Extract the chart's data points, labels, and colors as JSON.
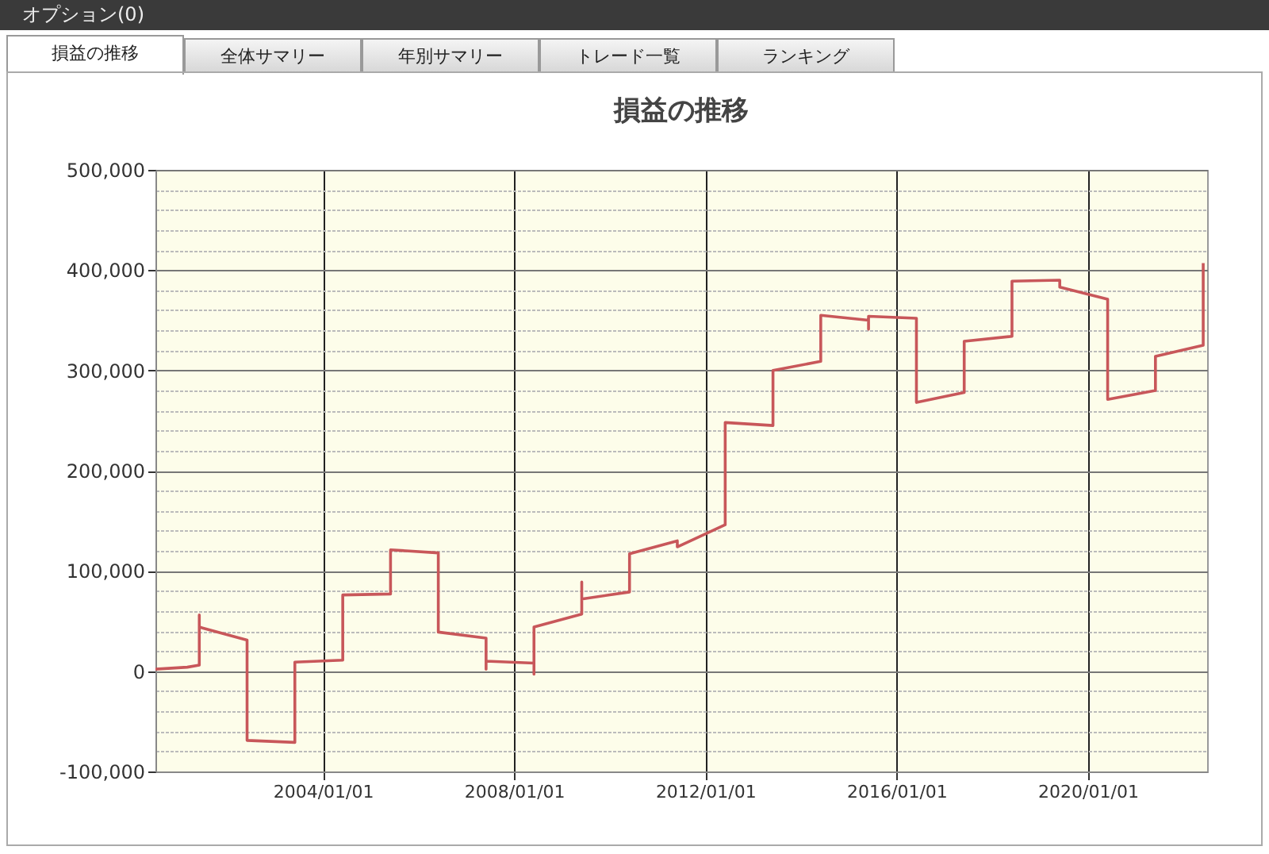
{
  "chart_data": {
    "type": "line",
    "title": "損益の推移",
    "annotations": [
      "オプション(0)",
      "損益の推移",
      "全体サマリー",
      "年別サマリー",
      "トレード一覧",
      "ランキング"
    ],
    "x": [
      "2000-07",
      "2001-03",
      "2001-06",
      "2001-06",
      "2001-06",
      "2002-06",
      "2002-06",
      "2003-06",
      "2003-06",
      "2004-06",
      "2004-06",
      "2005-06",
      "2005-06",
      "2006-06",
      "2006-06",
      "2007-06",
      "2007-06",
      "2007-06",
      "2008-06",
      "2008-06",
      "2008-06",
      "2009-06",
      "2009-06",
      "2009-06",
      "2010-06",
      "2010-06",
      "2011-06",
      "2011-06",
      "2012-06",
      "2012-06",
      "2013-06",
      "2013-06",
      "2014-06",
      "2014-06",
      "2015-06",
      "2015-06",
      "2015-06",
      "2016-06",
      "2016-06",
      "2017-06",
      "2017-06",
      "2018-06",
      "2018-06",
      "2019-06",
      "2019-06",
      "2020-06",
      "2020-06",
      "2021-06",
      "2021-06",
      "2022-06",
      "2022-06"
    ],
    "series": [
      {
        "color": "#c8575a",
        "values": [
          2000,
          4000,
          6000,
          56000,
          44000,
          31000,
          -69000,
          -71000,
          9000,
          11000,
          76000,
          77000,
          121000,
          118000,
          39000,
          33000,
          2000,
          10000,
          8000,
          -3000,
          44000,
          57000,
          89000,
          72000,
          79000,
          117000,
          130000,
          124000,
          146000,
          248000,
          245000,
          300000,
          309000,
          355000,
          350000,
          341000,
          354000,
          352000,
          268000,
          278000,
          329000,
          334000,
          389000,
          390000,
          383000,
          371000,
          271000,
          280000,
          314000,
          325000,
          407000
        ]
      }
    ],
    "xlim": [
      "2000-07",
      "2022-07"
    ],
    "xticks": [
      {
        "value": "2004-01-01",
        "label": "2004/01/01"
      },
      {
        "value": "2008-01-01",
        "label": "2008/01/01"
      },
      {
        "value": "2012-01-01",
        "label": "2012/01/01"
      },
      {
        "value": "2016-01-01",
        "label": "2016/01/01"
      },
      {
        "value": "2020-01-01",
        "label": "2020/01/01"
      }
    ],
    "ylim": [
      -100000,
      500000
    ],
    "yticks": [
      {
        "value": -100000,
        "label": "-100,000"
      },
      {
        "value": -80000,
        "label": null
      },
      {
        "value": -60000,
        "label": null
      },
      {
        "value": -40000,
        "label": null
      },
      {
        "value": -20000,
        "label": null
      },
      {
        "value": 0,
        "label": "0"
      },
      {
        "value": 20000,
        "label": null
      },
      {
        "value": 40000,
        "label": null
      },
      {
        "value": 60000,
        "label": null
      },
      {
        "value": 80000,
        "label": null
      },
      {
        "value": 100000,
        "label": "100,000"
      },
      {
        "value": 120000,
        "label": null
      },
      {
        "value": 140000,
        "label": null
      },
      {
        "value": 160000,
        "label": null
      },
      {
        "value": 180000,
        "label": null
      },
      {
        "value": 200000,
        "label": "200,000"
      },
      {
        "value": 220000,
        "label": null
      },
      {
        "value": 240000,
        "label": null
      },
      {
        "value": 260000,
        "label": null
      },
      {
        "value": 280000,
        "label": null
      },
      {
        "value": 300000,
        "label": "300,000"
      },
      {
        "value": 320000,
        "label": null
      },
      {
        "value": 340000,
        "label": null
      },
      {
        "value": 360000,
        "label": null
      },
      {
        "value": 380000,
        "label": null
      },
      {
        "value": 400000,
        "label": "400,000"
      },
      {
        "value": 420000,
        "label": null
      },
      {
        "value": 440000,
        "label": null
      },
      {
        "value": 460000,
        "label": null
      },
      {
        "value": 480000,
        "label": null
      },
      {
        "value": 500000,
        "label": "500,000"
      }
    ],
    "grid": true,
    "marker": "none",
    "line_style": "solid"
  }
}
